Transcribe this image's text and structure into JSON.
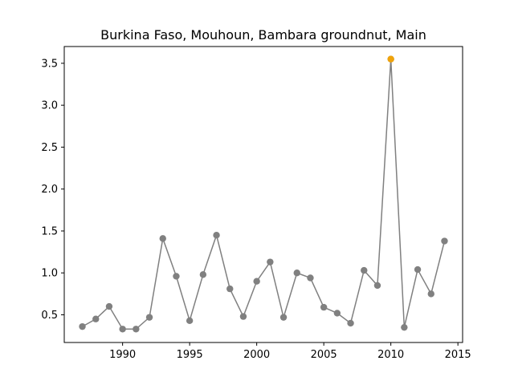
{
  "chart_data": {
    "type": "line",
    "title": "Burkina Faso, Mouhoun, Bambara groundnut, Main",
    "xlabel": "",
    "ylabel": "",
    "xlim": [
      1985.65,
      2015.35
    ],
    "ylim": [
      0.17,
      3.7
    ],
    "x_ticks": [
      1990,
      1995,
      2000,
      2005,
      2010,
      2015
    ],
    "y_ticks": [
      0.5,
      1.0,
      1.5,
      2.0,
      2.5,
      3.0,
      3.5
    ],
    "x_tick_labels": [
      "1990",
      "1995",
      "2000",
      "2005",
      "2010",
      "2015"
    ],
    "y_tick_labels": [
      "0.5",
      "1.0",
      "1.5",
      "2.0",
      "2.5",
      "3.0",
      "3.5"
    ],
    "grid": false,
    "series": [
      {
        "color": "#808080",
        "x": [
          1987,
          1988,
          1989,
          1990,
          1991,
          1992,
          1993,
          1994,
          1995,
          1996,
          1997,
          1998,
          1999,
          2000,
          2001,
          2002,
          2003,
          2004,
          2005,
          2006,
          2007,
          2008,
          2009,
          2010,
          2011,
          2012,
          2013,
          2014
        ],
        "values": [
          0.36,
          0.45,
          0.6,
          0.33,
          0.33,
          0.47,
          1.41,
          0.96,
          0.43,
          0.98,
          1.45,
          0.81,
          0.48,
          0.9,
          1.13,
          0.47,
          1.0,
          0.94,
          0.59,
          0.52,
          0.4,
          1.03,
          0.85,
          3.55,
          0.35,
          1.04,
          0.75,
          1.38
        ]
      }
    ],
    "highlight": {
      "x": 2010,
      "value": 3.55,
      "color": "#f0a30a"
    }
  }
}
